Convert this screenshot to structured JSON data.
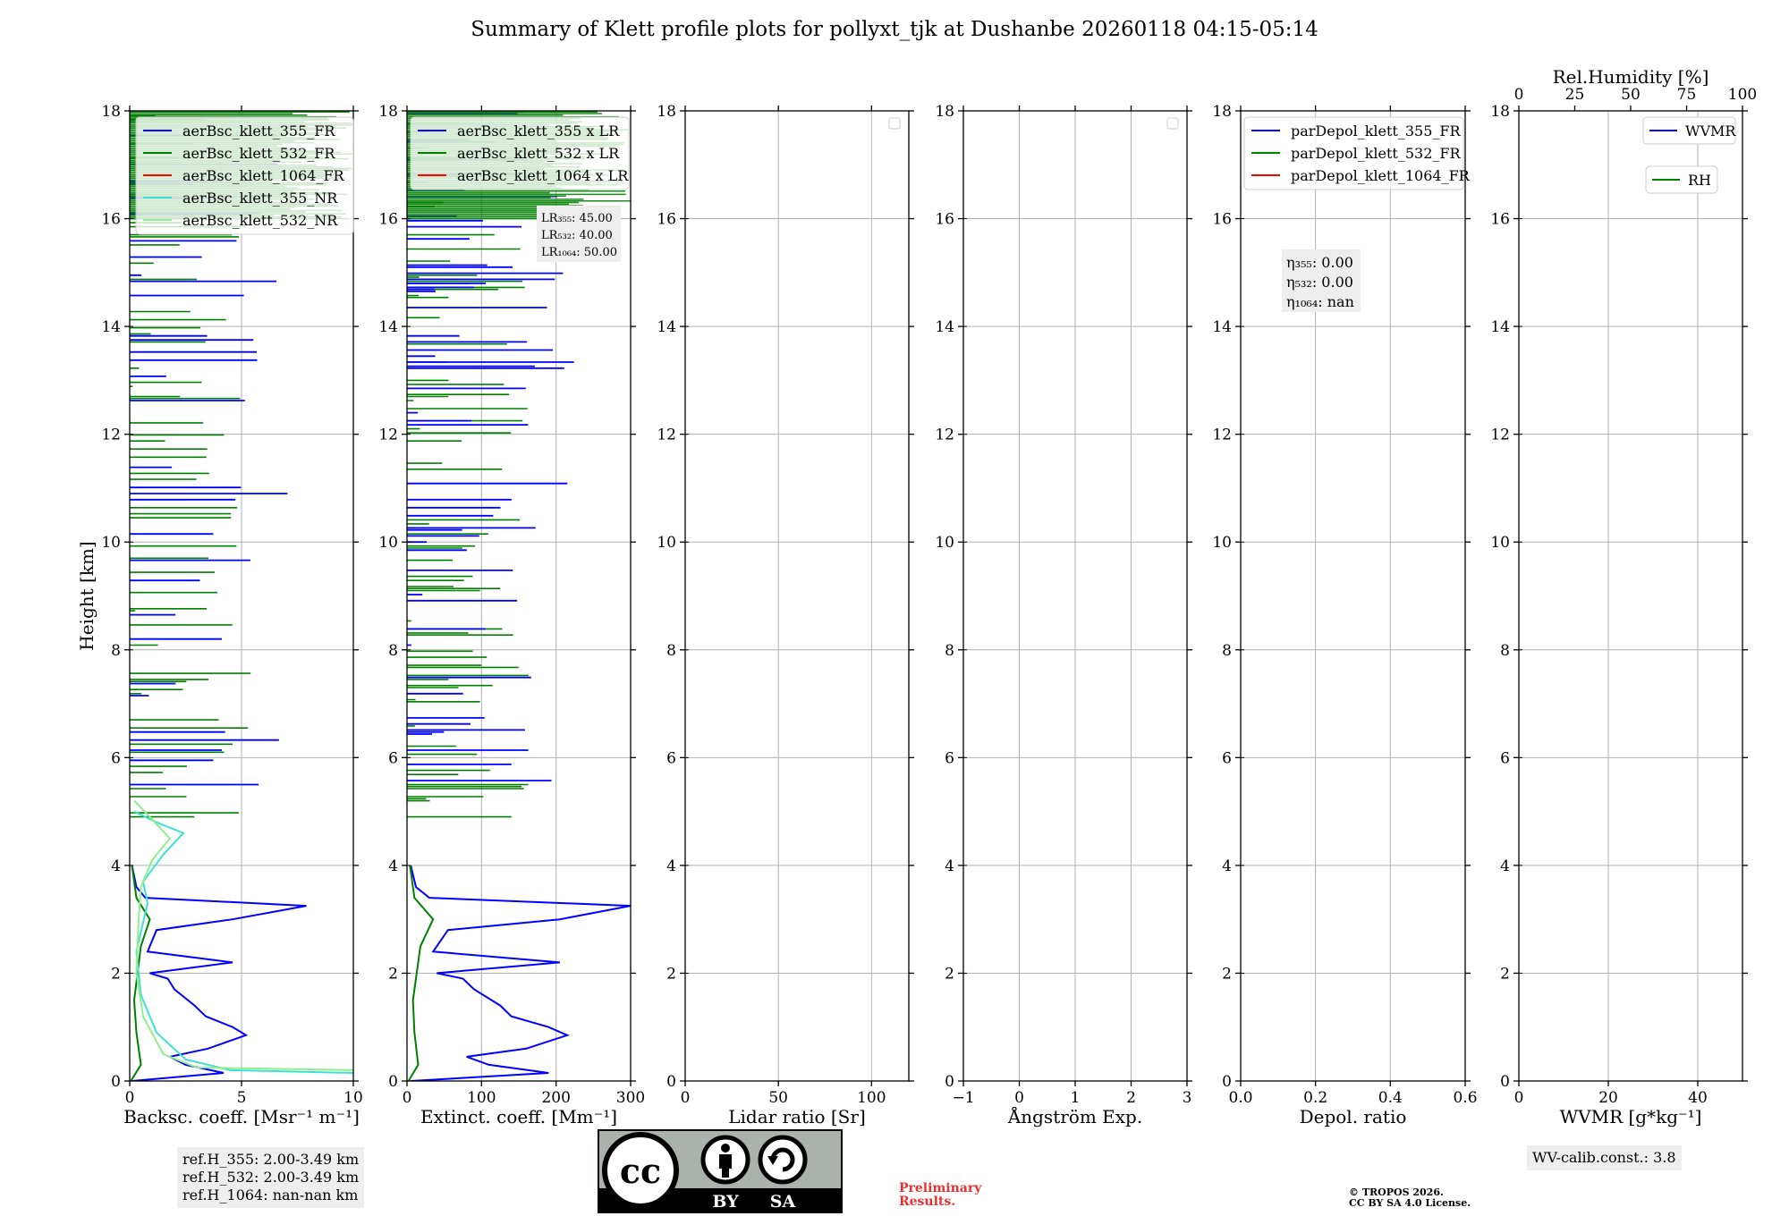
{
  "figure": {
    "title": "Summary of Klett profile plots for pollyxt_tjk at Dushanbe 20260118 04:15-05:14",
    "preliminary": [
      "Preliminary",
      "Results."
    ],
    "copyright": [
      "© TROPOS 2026.",
      "CC BY SA 4.0 License."
    ],
    "ref_heights": [
      "ref.H_355: 2.00-3.49 km",
      "ref.H_532: 2.00-3.49 km",
      "ref.H_1064: nan-nan km"
    ],
    "wv_calib": "WV-calib.const.: 3.8",
    "license_badge": [
      "BY",
      "SA"
    ]
  },
  "chart_data": [
    {
      "type": "line",
      "panel": "backscatter",
      "xlabel": "Backsc. coeff. [Msr⁻¹ m⁻¹]",
      "ylabel": "Height [km]",
      "xlim": [
        0,
        10
      ],
      "ylim": [
        0,
        18
      ],
      "xticks": [
        0,
        5,
        10
      ],
      "yticks": [
        0,
        2,
        4,
        6,
        8,
        10,
        12,
        14,
        16,
        18
      ],
      "legend": [
        "aerBsc_klett_355_FR",
        "aerBsc_klett_532_FR",
        "aerBsc_klett_1064_FR",
        "aerBsc_klett_355_NR",
        "aerBsc_klett_532_NR"
      ],
      "series": [
        {
          "name": "aerBsc_klett_355_FR",
          "color": "#0000ff",
          "points": [
            [
              0.1,
              0
            ],
            [
              4.2,
              0.15
            ],
            [
              2.5,
              0.3
            ],
            [
              1.8,
              0.45
            ],
            [
              3.5,
              0.6
            ],
            [
              5.2,
              0.85
            ],
            [
              4.6,
              1.0
            ],
            [
              3.4,
              1.2
            ],
            [
              2.9,
              1.4
            ],
            [
              2.0,
              1.7
            ],
            [
              1.7,
              1.9
            ],
            [
              0.9,
              2.0
            ],
            [
              4.6,
              2.2
            ],
            [
              0.8,
              2.4
            ],
            [
              1.2,
              2.8
            ],
            [
              4.6,
              3.0
            ],
            [
              7.9,
              3.25
            ],
            [
              0.7,
              3.4
            ],
            [
              0.3,
              3.6
            ],
            [
              0.1,
              4.0
            ]
          ]
        },
        {
          "name": "aerBsc_klett_532_FR",
          "color": "#008000",
          "points": [
            [
              0.05,
              0
            ],
            [
              0.5,
              0.3
            ],
            [
              0.3,
              0.9
            ],
            [
              0.2,
              1.5
            ],
            [
              0.5,
              2.5
            ],
            [
              0.9,
              3.0
            ],
            [
              0.3,
              3.4
            ],
            [
              0.1,
              4.0
            ]
          ]
        },
        {
          "name": "aerBsc_klett_1064_FR",
          "color": "#ff0000",
          "points": []
        },
        {
          "name": "aerBsc_klett_355_NR",
          "color": "#40e0d0",
          "points": [
            [
              10,
              0.15
            ],
            [
              4.5,
              0.2
            ],
            [
              2.5,
              0.4
            ],
            [
              1.2,
              0.9
            ],
            [
              0.5,
              1.6
            ],
            [
              0.3,
              2.4
            ],
            [
              0.8,
              3.3
            ],
            [
              0.6,
              3.7
            ],
            [
              1.5,
              4.2
            ],
            [
              2.4,
              4.6
            ],
            [
              1.2,
              4.8
            ],
            [
              0.2,
              5.0
            ]
          ]
        },
        {
          "name": "aerBsc_klett_532_NR",
          "color": "#90ee90",
          "points": [
            [
              10,
              0.2
            ],
            [
              3.0,
              0.25
            ],
            [
              1.5,
              0.5
            ],
            [
              0.6,
              1.2
            ],
            [
              0.3,
              2.0
            ],
            [
              0.4,
              3.0
            ],
            [
              0.5,
              3.6
            ],
            [
              1.0,
              4.1
            ],
            [
              1.8,
              4.5
            ],
            [
              0.9,
              4.9
            ],
            [
              0.2,
              5.2
            ]
          ]
        }
      ]
    },
    {
      "type": "line",
      "panel": "extinction",
      "xlabel": "Extinct. coeff. [Mm⁻¹]",
      "xlim": [
        0,
        300
      ],
      "ylim": [
        0,
        18
      ],
      "xticks": [
        0,
        100,
        200,
        300
      ],
      "yticks": [
        0,
        2,
        4,
        6,
        8,
        10,
        12,
        14,
        16,
        18
      ],
      "legend": [
        "aerBsc_klett_355 x LR",
        "aerBsc_klett_532 x LR",
        "aerBsc_klett_1064 x LR"
      ],
      "lidar_ratios": [
        "LR₃₅₅: 45.00",
        "LR₅₃₂: 40.00",
        "LR₁₀₆₄: 50.00"
      ],
      "series": [
        {
          "name": "aerBsc_klett_355 x LR",
          "color": "#0000ff",
          "points": [
            [
              5,
              0
            ],
            [
              190,
              0.15
            ],
            [
              110,
              0.3
            ],
            [
              80,
              0.45
            ],
            [
              160,
              0.6
            ],
            [
              215,
              0.85
            ],
            [
              190,
              1.0
            ],
            [
              140,
              1.2
            ],
            [
              125,
              1.4
            ],
            [
              90,
              1.7
            ],
            [
              75,
              1.9
            ],
            [
              40,
              2.0
            ],
            [
              205,
              2.2
            ],
            [
              35,
              2.4
            ],
            [
              55,
              2.8
            ],
            [
              205,
              3.0
            ],
            [
              300,
              3.25
            ],
            [
              30,
              3.4
            ],
            [
              12,
              3.6
            ],
            [
              5,
              4.0
            ]
          ]
        },
        {
          "name": "aerBsc_klett_532 x LR",
          "color": "#008000",
          "points": [
            [
              2,
              0
            ],
            [
              15,
              0.3
            ],
            [
              10,
              0.9
            ],
            [
              8,
              1.5
            ],
            [
              18,
              2.5
            ],
            [
              35,
              3.0
            ],
            [
              10,
              3.4
            ],
            [
              4,
              4.0
            ]
          ]
        },
        {
          "name": "aerBsc_klett_1064 x LR",
          "color": "#ff0000",
          "points": []
        }
      ]
    },
    {
      "type": "line",
      "panel": "lidar_ratio",
      "xlabel": "Lidar ratio [Sr]",
      "xlim": [
        0,
        120
      ],
      "ylim": [
        0,
        18
      ],
      "xticks": [
        0,
        50,
        100
      ],
      "yticks": [
        0,
        2,
        4,
        6,
        8,
        10,
        12,
        14,
        16,
        18
      ],
      "series": []
    },
    {
      "type": "line",
      "panel": "angstrom",
      "xlabel": "Ångström Exp.",
      "xlim": [
        -1,
        3
      ],
      "ylim": [
        0,
        18
      ],
      "xticks": [
        -1,
        0,
        1,
        2,
        3
      ],
      "yticks": [
        0,
        2,
        4,
        6,
        8,
        10,
        12,
        14,
        16,
        18
      ],
      "series": []
    },
    {
      "type": "line",
      "panel": "depol",
      "xlabel": "Depol. ratio",
      "xlim": [
        0,
        0.6
      ],
      "ylim": [
        0,
        18
      ],
      "xticks": [
        0.0,
        0.2,
        0.4,
        0.6
      ],
      "yticks": [
        0,
        2,
        4,
        6,
        8,
        10,
        12,
        14,
        16,
        18
      ],
      "legend": [
        "parDepol_klett_355_FR",
        "parDepol_klett_532_FR",
        "parDepol_klett_1064_FR"
      ],
      "eta": [
        "η₃₅₅: 0.00",
        "η₅₃₂: 0.00",
        "η₁₀₆₄: nan"
      ],
      "series": []
    },
    {
      "type": "line",
      "panel": "wvmr",
      "xlabel": "WVMR [g*kg⁻¹]",
      "xlim": [
        0,
        50
      ],
      "ylim": [
        0,
        18
      ],
      "xticks": [
        0,
        20,
        40
      ],
      "yticks": [
        0,
        2,
        4,
        6,
        8,
        10,
        12,
        14,
        16,
        18
      ],
      "top_xlabel": "Rel.Humidity [%]",
      "top_xlim": [
        0,
        100
      ],
      "top_xticks": [
        0,
        25,
        50,
        75,
        100
      ],
      "legend": [
        "WVMR",
        "RH"
      ],
      "series": []
    }
  ],
  "colors": {
    "c355": "#0000ff",
    "c532": "#008000",
    "c1064": "#ff0000",
    "c355nr": "#40e0d0",
    "c532nr": "#90ee90",
    "grid": "#b0b0b0",
    "box": "#eeeeee"
  }
}
